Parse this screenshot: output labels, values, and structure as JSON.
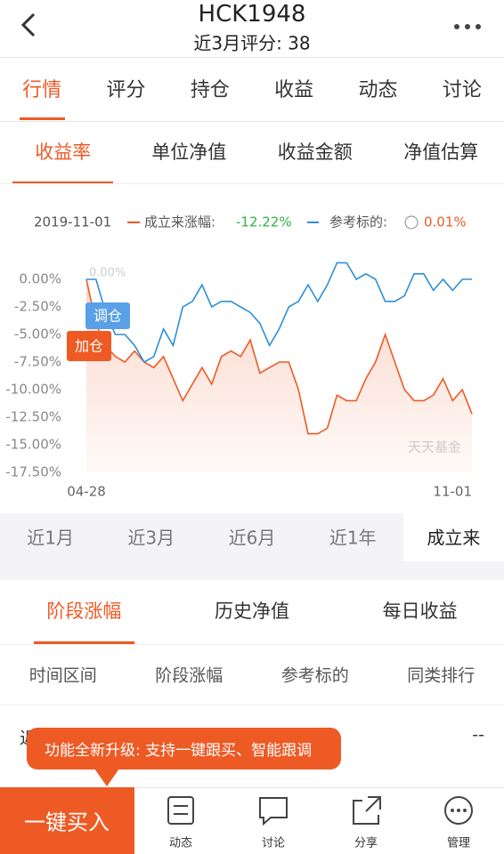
{
  "header": {
    "title": "HCK1948",
    "subtitle": "近3月评分: 38"
  },
  "tabs": [
    "行情",
    "评分",
    "持仓",
    "收益",
    "动态",
    "讨论"
  ],
  "subtabs": [
    "收益率",
    "单位净值",
    "收益金额",
    "净值估算"
  ],
  "legend": {
    "date": "2019-11-01",
    "fund_label": "成立来涨幅:",
    "fund_value": "-12.22%",
    "ref_label": "参考标的:",
    "ref_value": "0.01%"
  },
  "chart_data": {
    "type": "line",
    "categories": [
      "04-28",
      null,
      null,
      null,
      null,
      null,
      null,
      null,
      null,
      null,
      null,
      null,
      null,
      null,
      null,
      null,
      null,
      null,
      null,
      null,
      null,
      null,
      null,
      null,
      null,
      null,
      null,
      null,
      null,
      null,
      null,
      null,
      null,
      null,
      null,
      null,
      null,
      null,
      null,
      null,
      "11-01"
    ],
    "series": [
      {
        "name": "成立来涨幅",
        "color": "#ee5a24",
        "values": [
          0,
          -4,
          -6,
          -7,
          -7.5,
          -6.5,
          -7.5,
          -8,
          -7,
          -9,
          -11,
          -9.5,
          -8,
          -9.5,
          -7,
          -6.5,
          -7,
          -5.5,
          -8.5,
          -8,
          -7.5,
          -7.5,
          -10,
          -14,
          -14,
          -13.5,
          -10.5,
          -11,
          -11,
          -9,
          -7.5,
          -5,
          -7.5,
          -10,
          -11,
          -11,
          -10.5,
          -9,
          -11,
          -10,
          -12.2
        ]
      },
      {
        "name": "参考标的",
        "color": "#2f8fd8",
        "values": [
          0,
          0,
          -3,
          -5,
          -5,
          -6,
          -7.5,
          -7,
          -4.5,
          -6,
          -2.5,
          -2,
          -0.5,
          -2.5,
          -2,
          -2,
          -2.5,
          -3,
          -4,
          -6,
          -4.5,
          -2.5,
          -2,
          -0.5,
          -2,
          -0.5,
          1.5,
          1.5,
          0,
          0.5,
          0,
          -2,
          -2,
          -1.5,
          0.5,
          0.5,
          -1,
          0,
          -1,
          0,
          0.01
        ]
      }
    ],
    "ylim": [
      -17.5,
      2.5
    ],
    "yticks": [
      {
        "value": 0,
        "label": "0.00%"
      },
      {
        "value": -2.5,
        "label": "-2.50%"
      },
      {
        "value": -5,
        "label": "-5.00%"
      },
      {
        "value": -7.5,
        "label": "-7.50%"
      },
      {
        "value": -10,
        "label": "-10.00%"
      },
      {
        "value": -12.5,
        "label": "-12.50%"
      },
      {
        "value": -15,
        "label": "-15.00%"
      },
      {
        "value": -17.5,
        "label": "-17.50%"
      }
    ],
    "grid": false,
    "annotations": {
      "top": "0.00%",
      "adjust": "调仓",
      "add": "加仓",
      "watermark": "天天基金"
    }
  },
  "ranges": [
    "近1月",
    "近3月",
    "近6月",
    "近1年",
    "成立来"
  ],
  "sections": [
    "阶段涨幅",
    "历史净值",
    "每日收益"
  ],
  "table": {
    "header": [
      "时间区间",
      "阶段涨幅",
      "参考标的",
      "同类排行"
    ],
    "rows": [
      [
        "近1周",
        "--"
      ]
    ]
  },
  "tooltip": "功能全新升级: 支持一键跟买、智能跟调",
  "bottom": {
    "buy": "一键买入",
    "nav": [
      "动态",
      "讨论",
      "分享",
      "管理"
    ]
  }
}
